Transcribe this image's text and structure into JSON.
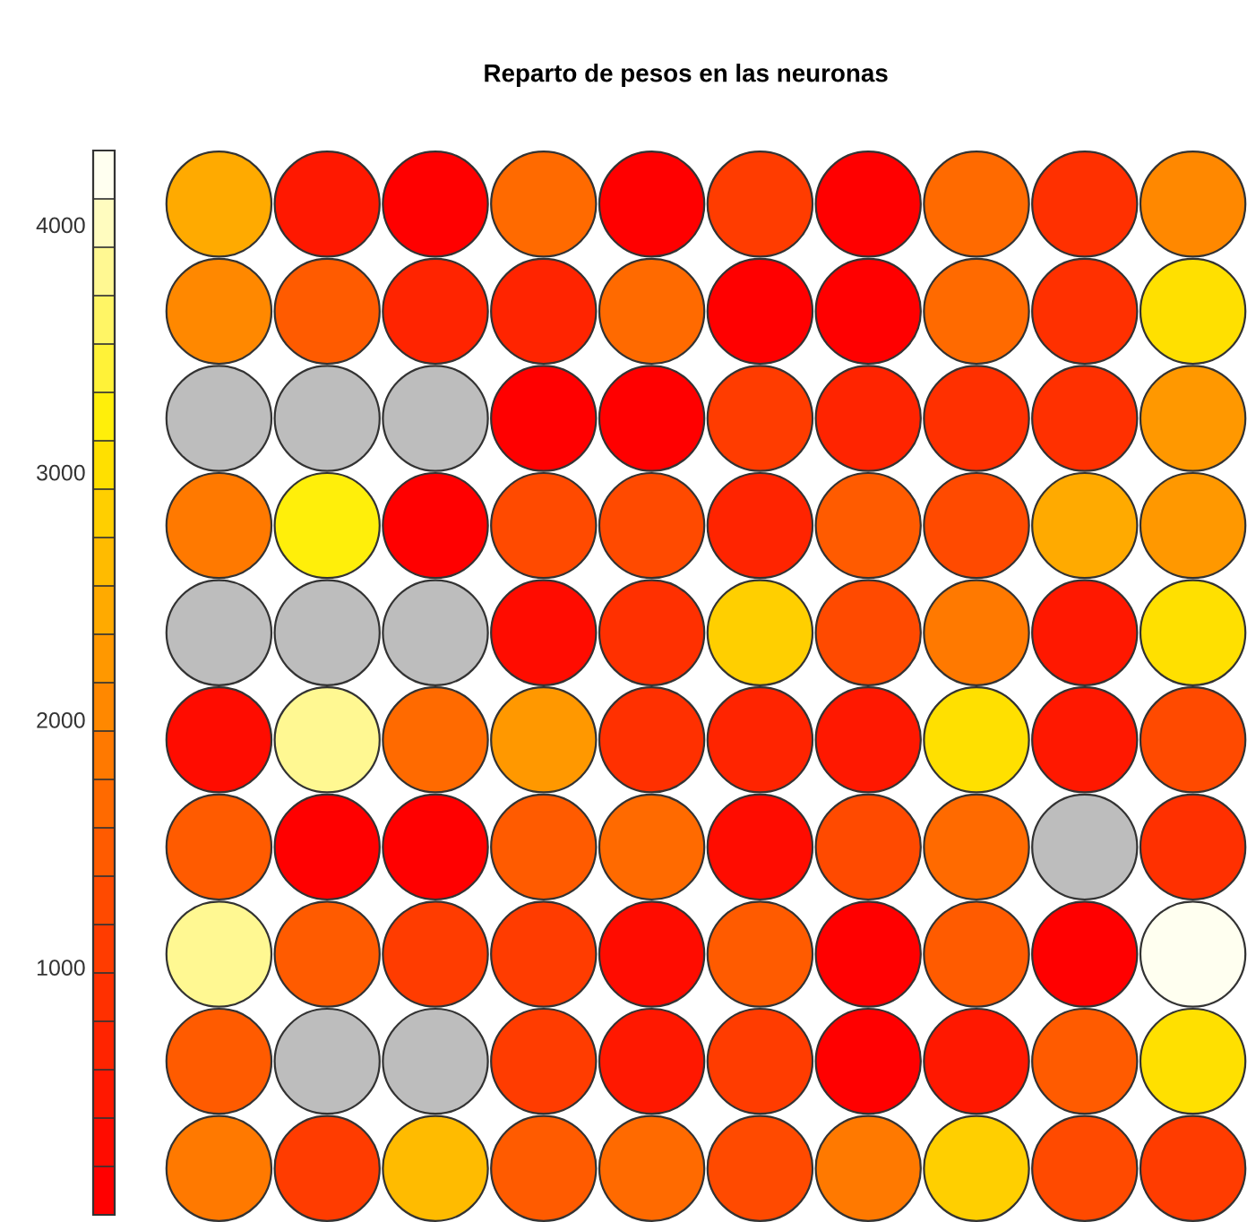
{
  "chart_data": {
    "type": "heatmap",
    "title": "Reparto de pesos en las neuronas",
    "categories": [
      null,
      null,
      null,
      null,
      null,
      null,
      null,
      null,
      null,
      null
    ],
    "y_categories": [
      null,
      null,
      null,
      null,
      null,
      null,
      null,
      null,
      null,
      null
    ],
    "cells": [
      [
        2400,
        400,
        150,
        1600,
        150,
        1000,
        100,
        1700,
        900,
        2000
      ],
      [
        2100,
        1500,
        600,
        600,
        1600,
        150,
        150,
        1700,
        800,
        3000
      ],
      [
        null,
        null,
        null,
        150,
        150,
        1000,
        600,
        800,
        900,
        2200
      ],
      [
        1900,
        3200,
        100,
        1200,
        1200,
        700,
        1500,
        1300,
        2400,
        2200
      ],
      [
        null,
        null,
        null,
        200,
        900,
        2900,
        1200,
        1900,
        500,
        3000
      ],
      [
        300,
        3900,
        1600,
        2200,
        800,
        700,
        500,
        3000,
        400,
        1200
      ],
      [
        1400,
        150,
        150,
        1500,
        1700,
        200,
        1200,
        1600,
        null,
        900
      ],
      [
        3900,
        1400,
        1000,
        1000,
        200,
        1400,
        150,
        1500,
        150,
        4200
      ],
      [
        1400,
        null,
        null,
        1000,
        400,
        1000,
        150,
        400,
        1400,
        3000
      ],
      [
        1800,
        1000,
        2700,
        1500,
        1600,
        1200,
        1900,
        2800,
        1200,
        1000
      ]
    ],
    "clim": [
      0,
      4300
    ],
    "cticks": [
      1000,
      2000,
      3000,
      4000
    ],
    "tick_labels": false
  }
}
